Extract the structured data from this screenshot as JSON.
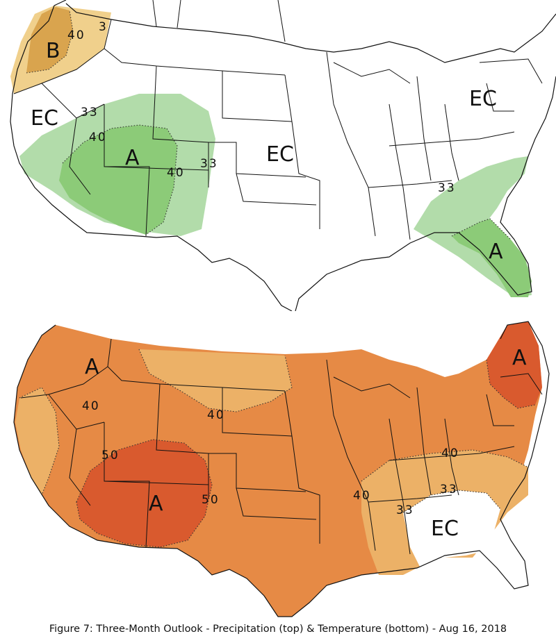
{
  "caption": "Figure 7: Three-Month Outlook - Precipitation (top) & Temperature (bottom) - Aug 16, 2018",
  "colors": {
    "below_low": "#f0d08c",
    "below_mid": "#d9a44e",
    "above_precip_low": "#b2dcaa",
    "above_precip_mid": "#8ccb78",
    "above_temp_low": "#ecb167",
    "above_temp_mid": "#e68a45",
    "above_temp_high": "#d95a2e"
  },
  "precipitation": {
    "labels": {
      "b_nw": "B",
      "n40_nw": "40",
      "n3_nw": "3",
      "ec_west": "EC",
      "n33_west": "33",
      "n40_west": "40",
      "a_sw": "A",
      "n40_sw": "40",
      "n33_sw": "33",
      "ec_central": "EC",
      "ec_ne": "EC",
      "n33_se": "33",
      "a_fl": "A"
    }
  },
  "temperature": {
    "labels": {
      "a_nw": "A",
      "n40_nw": "40",
      "n40_north": "40",
      "n50_sw": "50",
      "a_sw": "A",
      "n50_south": "50",
      "a_ne": "A",
      "n40_east": "40",
      "n40_south": "40",
      "n33_se": "33",
      "n33_east": "33",
      "ec_se": "EC"
    }
  }
}
